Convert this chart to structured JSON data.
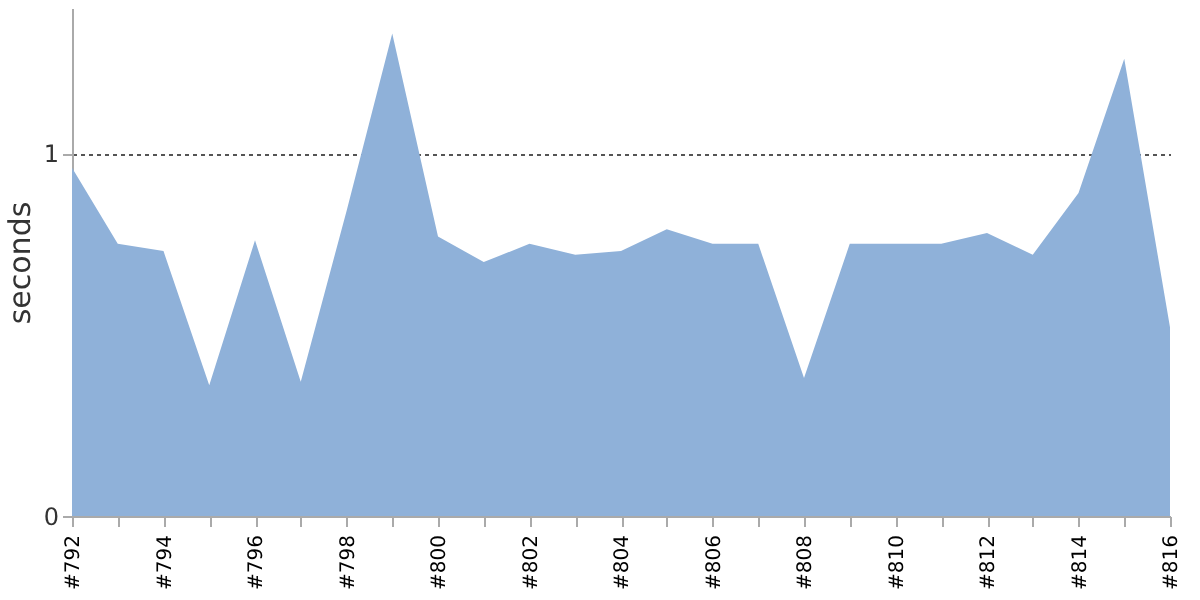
{
  "chart_data": {
    "type": "area",
    "ylabel": "seconds",
    "categories": [
      "#792",
      null,
      "#794",
      null,
      "#796",
      null,
      "#798",
      null,
      "#800",
      null,
      "#802",
      null,
      "#804",
      null,
      "#806",
      null,
      "#808",
      null,
      "#810",
      null,
      "#812",
      null,
      "#814",
      null,
      "#816"
    ],
    "series": [
      {
        "color": "#8fb1d9",
        "values": [
          0.96,
          0.75,
          0.73,
          0.36,
          0.76,
          0.37,
          0.84,
          1.33,
          0.77,
          0.7,
          0.75,
          0.72,
          0.73,
          0.79,
          0.75,
          0.75,
          0.38,
          0.75,
          0.75,
          0.75,
          0.78,
          0.72,
          0.89,
          1.26,
          0.52
        ]
      }
    ],
    "ylim": [
      0,
      1.4
    ],
    "yticks": [
      0,
      1
    ],
    "grid": "y"
  }
}
